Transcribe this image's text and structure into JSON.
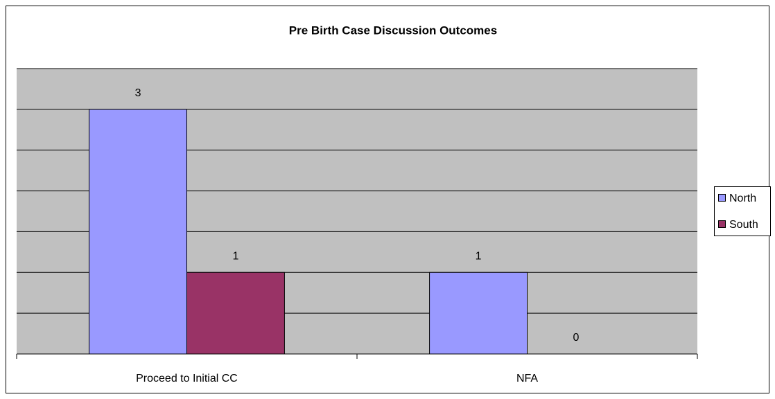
{
  "chart_data": {
    "type": "bar",
    "title": "Pre Birth Case Discussion Outcomes",
    "categories": [
      "Proceed to Initial CC",
      "NFA"
    ],
    "series": [
      {
        "name": "North",
        "color": "#9999ff",
        "values": [
          3,
          1
        ]
      },
      {
        "name": "South",
        "color": "#993366",
        "values": [
          1,
          0
        ]
      }
    ],
    "ylim": [
      0,
      3.5
    ],
    "yticks": [
      0,
      0.5,
      1,
      1.5,
      2,
      2.5,
      3,
      3.5
    ],
    "grid": true,
    "plot_background": "#c0c0c0",
    "legend": "right"
  }
}
